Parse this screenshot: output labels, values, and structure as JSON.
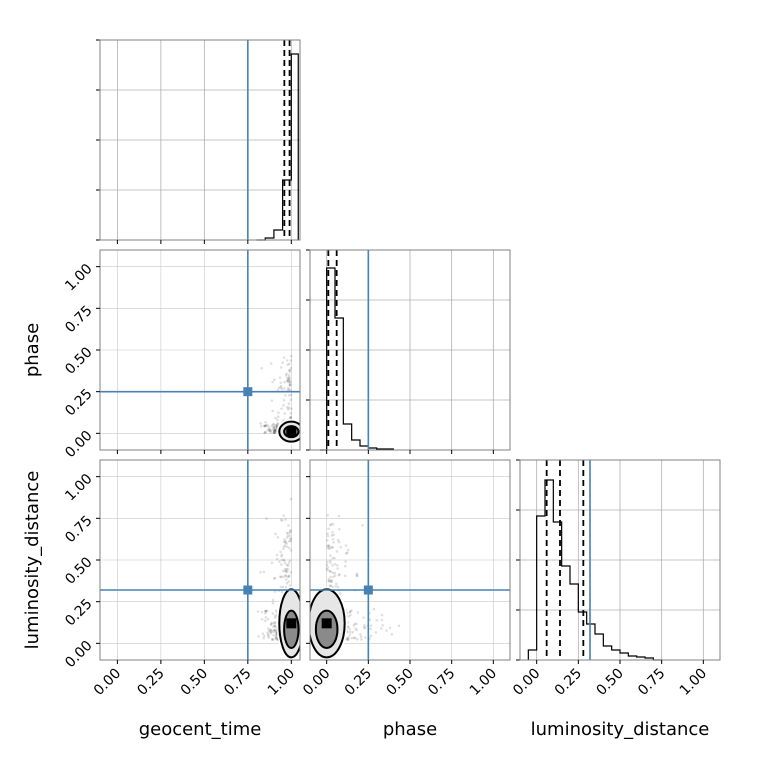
{
  "chart_data": {
    "type": "corner",
    "parameters": [
      "geocent_time",
      "phase",
      "luminosity_distance"
    ],
    "axis_labels": {
      "x": [
        "geocent_time",
        "phase",
        "luminosity_distance"
      ],
      "y": [
        "",
        "phase",
        "luminosity_distance"
      ]
    },
    "ticks": [
      0.0,
      0.25,
      0.5,
      0.75,
      1.0
    ],
    "tick_labels": [
      "0.00",
      "0.25",
      "0.50",
      "0.75",
      "1.00"
    ],
    "truths": {
      "geocent_time": 0.75,
      "phase": 0.25,
      "luminosity_distance": 0.32
    },
    "truth_color": "#4682b4",
    "ranges": {
      "geocent_time": [
        -0.1,
        1.05
      ],
      "phase": [
        -0.1,
        1.1
      ],
      "luminosity_distance": [
        -0.1,
        1.1
      ]
    },
    "histograms": {
      "geocent_time": {
        "bin_edges": [
          0.8,
          0.85,
          0.9,
          0.95,
          1.0,
          1.04
        ],
        "counts": [
          0.0,
          0.01,
          0.05,
          0.3,
          0.93
        ],
        "quantiles": [
          0.96,
          0.99
        ]
      },
      "phase": {
        "bin_edges": [
          -0.04,
          0.0,
          0.05,
          0.1,
          0.15,
          0.2,
          0.25,
          0.3,
          0.35,
          0.4
        ],
        "counts": [
          0.0,
          0.91,
          0.66,
          0.13,
          0.05,
          0.02,
          0.01,
          0.005,
          0.005
        ],
        "quantiles": [
          0.01,
          0.06
        ]
      },
      "luminosity_distance": {
        "bin_edges": [
          -0.05,
          0.0,
          0.05,
          0.1,
          0.15,
          0.2,
          0.25,
          0.3,
          0.35,
          0.4,
          0.45,
          0.5,
          0.55,
          0.6,
          0.65,
          0.7,
          0.75
        ],
        "counts": [
          0.05,
          0.72,
          0.9,
          0.69,
          0.47,
          0.38,
          0.24,
          0.18,
          0.13,
          0.07,
          0.05,
          0.035,
          0.02,
          0.015,
          0.01,
          0.0
        ],
        "quantiles": [
          0.06,
          0.14,
          0.28
        ]
      }
    },
    "scatter_2d": [
      {
        "x": "geocent_time",
        "y": "phase",
        "peak": [
          1.0,
          0.01
        ],
        "contour_levels_width": [
          0.035,
          0.02
        ]
      },
      {
        "x": "geocent_time",
        "y": "luminosity_distance",
        "peak": [
          1.0,
          0.12
        ],
        "contour_levels_width": [
          0.04,
          0.025
        ]
      },
      {
        "x": "phase",
        "y": "luminosity_distance",
        "peak": [
          0.0,
          0.12
        ],
        "contour_levels_width": [
          0.1,
          0.06
        ]
      }
    ],
    "grid": true
  }
}
